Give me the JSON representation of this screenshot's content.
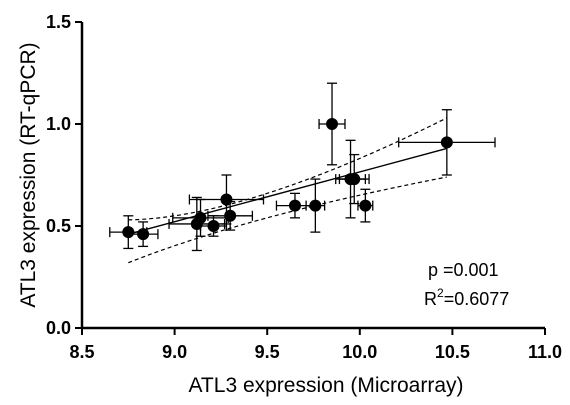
{
  "chart_data": {
    "type": "scatter",
    "xlabel": "ATL3 expression (Microarray)",
    "ylabel": "ATL3 expression (RT-qPCR)",
    "xlim": [
      8.5,
      11.0
    ],
    "ylim": [
      0.0,
      1.5
    ],
    "x_ticks": [
      "8.5",
      "9.0",
      "9.5",
      "10.0",
      "10.5",
      "11.0"
    ],
    "y_ticks": [
      "0.0",
      "0.5",
      "1.0",
      "1.5"
    ],
    "points": [
      {
        "x": 8.75,
        "y": 0.47,
        "xerr": 0.1,
        "yerr": 0.08
      },
      {
        "x": 8.83,
        "y": 0.46,
        "xerr": 0.08,
        "yerr": 0.06
      },
      {
        "x": 9.12,
        "y": 0.51,
        "xerr": 0.15,
        "yerr": 0.13
      },
      {
        "x": 9.14,
        "y": 0.54,
        "xerr": 0.15,
        "yerr": 0.09
      },
      {
        "x": 9.21,
        "y": 0.5,
        "xerr": 0.07,
        "yerr": 0.05
      },
      {
        "x": 9.28,
        "y": 0.63,
        "xerr": 0.2,
        "yerr": 0.12
      },
      {
        "x": 9.3,
        "y": 0.55,
        "xerr": 0.12,
        "yerr": 0.07
      },
      {
        "x": 9.65,
        "y": 0.6,
        "xerr": 0.1,
        "yerr": 0.06
      },
      {
        "x": 9.76,
        "y": 0.6,
        "xerr": 0.05,
        "yerr": 0.13
      },
      {
        "x": 9.85,
        "y": 1.0,
        "xerr": 0.07,
        "yerr": 0.2
      },
      {
        "x": 9.95,
        "y": 0.73,
        "xerr": 0.08,
        "yerr": 0.19
      },
      {
        "x": 9.97,
        "y": 0.73,
        "xerr": 0.08,
        "yerr": 0.12
      },
      {
        "x": 10.03,
        "y": 0.6,
        "xerr": 0.04,
        "yerr": 0.08
      },
      {
        "x": 10.47,
        "y": 0.91,
        "xerr": 0.26,
        "yerr": 0.16
      }
    ],
    "fit_line": {
      "x": [
        8.75,
        10.47
      ],
      "y": [
        0.46,
        0.88
      ]
    },
    "confidence_band_upper": {
      "x": [
        8.75,
        9.5,
        10.47
      ],
      "y": [
        0.53,
        0.66,
        1.03
      ]
    },
    "confidence_band_lower": {
      "x": [
        8.75,
        9.5,
        10.47
      ],
      "y": [
        0.32,
        0.54,
        0.74
      ]
    },
    "grid": false
  },
  "annotations": {
    "p_text": "p  =0.001",
    "r2_prefix": "R",
    "r2_sup": "2",
    "r2_value": "=0.6077"
  }
}
